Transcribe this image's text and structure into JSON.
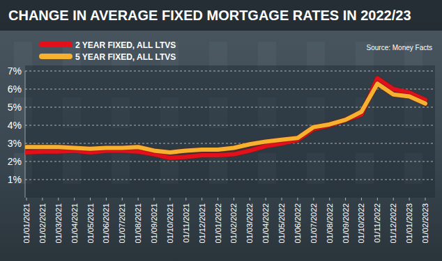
{
  "chart_data": {
    "type": "line",
    "title": "CHANGE IN AVERAGE FIXED MORTGAGE RATES IN 2022/23",
    "annotations": [
      "Source: Money Facts"
    ],
    "categories": [
      "01/01/2021",
      "01/02/2021",
      "01/03/2021",
      "01/04/2021",
      "01/05/2021",
      "01/06/2021",
      "01/07/2021",
      "01/08/2021",
      "01/09/2021",
      "01/10/2021",
      "01/11/2021",
      "01/12/2021",
      "01/01/2022",
      "01/02/2022",
      "01/03/2022",
      "01/04/2022",
      "01/05/2022",
      "01/06/2022",
      "01/07/2022",
      "01/08/2022",
      "01/09/2022",
      "01/10/2022",
      "01/11/2022",
      "01/12/2022",
      "01/01/2023",
      "01/02/2023"
    ],
    "series": [
      {
        "name": "2 YEAR FIXED, ALL LTVS",
        "color": "#e3101c",
        "values": [
          2.5,
          2.55,
          2.55,
          2.6,
          2.5,
          2.6,
          2.6,
          2.55,
          2.4,
          2.2,
          2.25,
          2.35,
          2.35,
          2.4,
          2.6,
          2.85,
          3.0,
          3.2,
          3.8,
          4.0,
          4.3,
          4.6,
          6.6,
          6.0,
          5.8,
          5.4
        ]
      },
      {
        "name": "5 YEAR FIXED, ALL LTVS",
        "color": "#f6b22f",
        "values": [
          2.8,
          2.8,
          2.8,
          2.75,
          2.7,
          2.75,
          2.75,
          2.8,
          2.6,
          2.5,
          2.6,
          2.65,
          2.65,
          2.75,
          2.95,
          3.1,
          3.2,
          3.3,
          3.9,
          4.05,
          4.3,
          4.75,
          6.3,
          5.7,
          5.6,
          5.2
        ]
      }
    ],
    "ylim": [
      0,
      7
    ],
    "yticks": [
      {
        "value": 1,
        "label": "1%"
      },
      {
        "value": 2,
        "label": "2%"
      },
      {
        "value": 3,
        "label": "3%"
      },
      {
        "value": 4,
        "label": "4%"
      },
      {
        "value": 5,
        "label": "5%"
      },
      {
        "value": 6,
        "label": "6%"
      },
      {
        "value": 7,
        "label": "7%"
      }
    ],
    "grid": true,
    "legend": "top-left"
  }
}
